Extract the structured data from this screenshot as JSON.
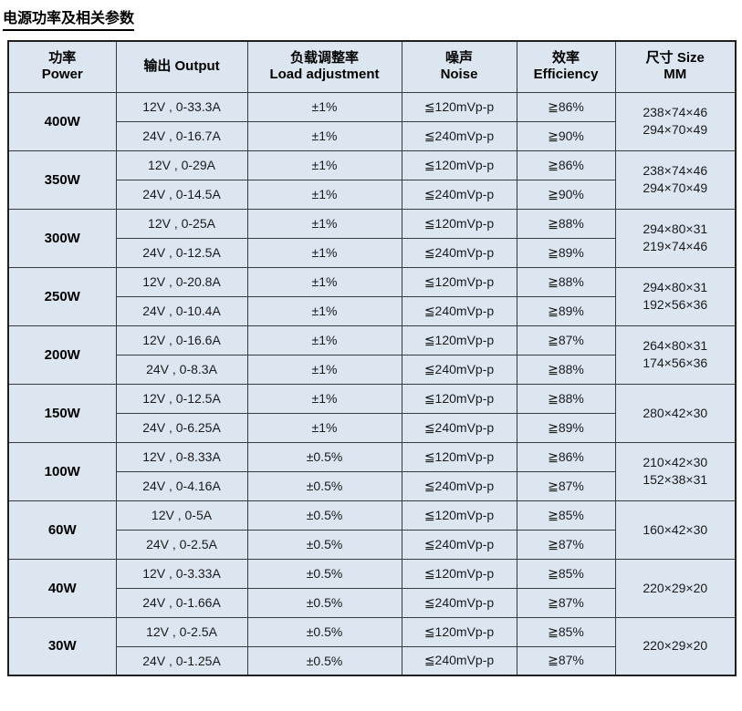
{
  "title": "电源功率及相关参数",
  "table": {
    "headers": [
      {
        "line1": "功率",
        "line2": "Power"
      },
      {
        "line1": "输出  Output",
        "line2": ""
      },
      {
        "line1": "负载调整率",
        "line2": "Load adjustment"
      },
      {
        "line1": "噪声",
        "line2": "Noise"
      },
      {
        "line1": "效率",
        "line2": "Efficiency"
      },
      {
        "line1": "尺寸 Size",
        "line2": "MM"
      }
    ],
    "groups": [
      {
        "power": "400W",
        "size": [
          "238×74×46",
          "294×70×49"
        ],
        "rows": [
          {
            "output": "12V , 0-33.3A",
            "load": "±1%",
            "noise": "≦120mVp-p",
            "efficiency": "≧86%"
          },
          {
            "output": "24V , 0-16.7A",
            "load": "±1%",
            "noise": "≦240mVp-p",
            "efficiency": "≧90%"
          }
        ]
      },
      {
        "power": "350W",
        "size": [
          "238×74×46",
          "294×70×49"
        ],
        "rows": [
          {
            "output": "12V , 0-29A",
            "load": "±1%",
            "noise": "≦120mVp-p",
            "efficiency": "≧86%"
          },
          {
            "output": "24V , 0-14.5A",
            "load": "±1%",
            "noise": "≦240mVp-p",
            "efficiency": "≧90%"
          }
        ]
      },
      {
        "power": "300W",
        "size": [
          "294×80×31",
          "219×74×46"
        ],
        "rows": [
          {
            "output": "12V , 0-25A",
            "load": "±1%",
            "noise": "≦120mVp-p",
            "efficiency": "≧88%"
          },
          {
            "output": "24V , 0-12.5A",
            "load": "±1%",
            "noise": "≦240mVp-p",
            "efficiency": "≧89%"
          }
        ]
      },
      {
        "power": "250W",
        "size": [
          "294×80×31",
          "192×56×36"
        ],
        "rows": [
          {
            "output": "12V , 0-20.8A",
            "load": "±1%",
            "noise": "≦120mVp-p",
            "efficiency": "≧88%"
          },
          {
            "output": "24V , 0-10.4A",
            "load": "±1%",
            "noise": "≦240mVp-p",
            "efficiency": "≧89%"
          }
        ]
      },
      {
        "power": "200W",
        "size": [
          "264×80×31",
          "174×56×36"
        ],
        "rows": [
          {
            "output": "12V , 0-16.6A",
            "load": "±1%",
            "noise": "≦120mVp-p",
            "efficiency": "≧87%"
          },
          {
            "output": "24V , 0-8.3A",
            "load": "±1%",
            "noise": "≦240mVp-p",
            "efficiency": "≧88%"
          }
        ]
      },
      {
        "power": "150W",
        "size": [
          "280×42×30"
        ],
        "rows": [
          {
            "output": "12V , 0-12.5A",
            "load": "±1%",
            "noise": "≦120mVp-p",
            "efficiency": "≧88%"
          },
          {
            "output": "24V , 0-6.25A",
            "load": "±1%",
            "noise": "≦240mVp-p",
            "efficiency": "≧89%"
          }
        ]
      },
      {
        "power": "100W",
        "size": [
          "210×42×30",
          "152×38×31"
        ],
        "rows": [
          {
            "output": "12V , 0-8.33A",
            "load": "±0.5%",
            "noise": "≦120mVp-p",
            "efficiency": "≧86%"
          },
          {
            "output": "24V , 0-4.16A",
            "load": "±0.5%",
            "noise": "≦240mVp-p",
            "efficiency": "≧87%"
          }
        ]
      },
      {
        "power": "60W",
        "size": [
          "160×42×30"
        ],
        "rows": [
          {
            "output": "12V , 0-5A",
            "load": "±0.5%",
            "noise": "≦120mVp-p",
            "efficiency": "≧85%"
          },
          {
            "output": "24V , 0-2.5A",
            "load": "±0.5%",
            "noise": "≦240mVp-p",
            "efficiency": "≧87%"
          }
        ]
      },
      {
        "power": "40W",
        "size": [
          "220×29×20"
        ],
        "rows": [
          {
            "output": "12V , 0-3.33A",
            "load": "±0.5%",
            "noise": "≦120mVp-p",
            "efficiency": "≧85%"
          },
          {
            "output": "24V , 0-1.66A",
            "load": "±0.5%",
            "noise": "≦240mVp-p",
            "efficiency": "≧87%"
          }
        ]
      },
      {
        "power": "30W",
        "size": [
          "220×29×20"
        ],
        "rows": [
          {
            "output": "12V , 0-2.5A",
            "load": "±0.5%",
            "noise": "≦120mVp-p",
            "efficiency": "≧85%"
          },
          {
            "output": "24V , 0-1.25A",
            "load": "±0.5%",
            "noise": "≦240mVp-p",
            "efficiency": "≧87%"
          }
        ]
      }
    ]
  },
  "colors": {
    "cell_background": "#dce6f1",
    "border": "#3a3a3a",
    "text": "#1a1a1a"
  }
}
